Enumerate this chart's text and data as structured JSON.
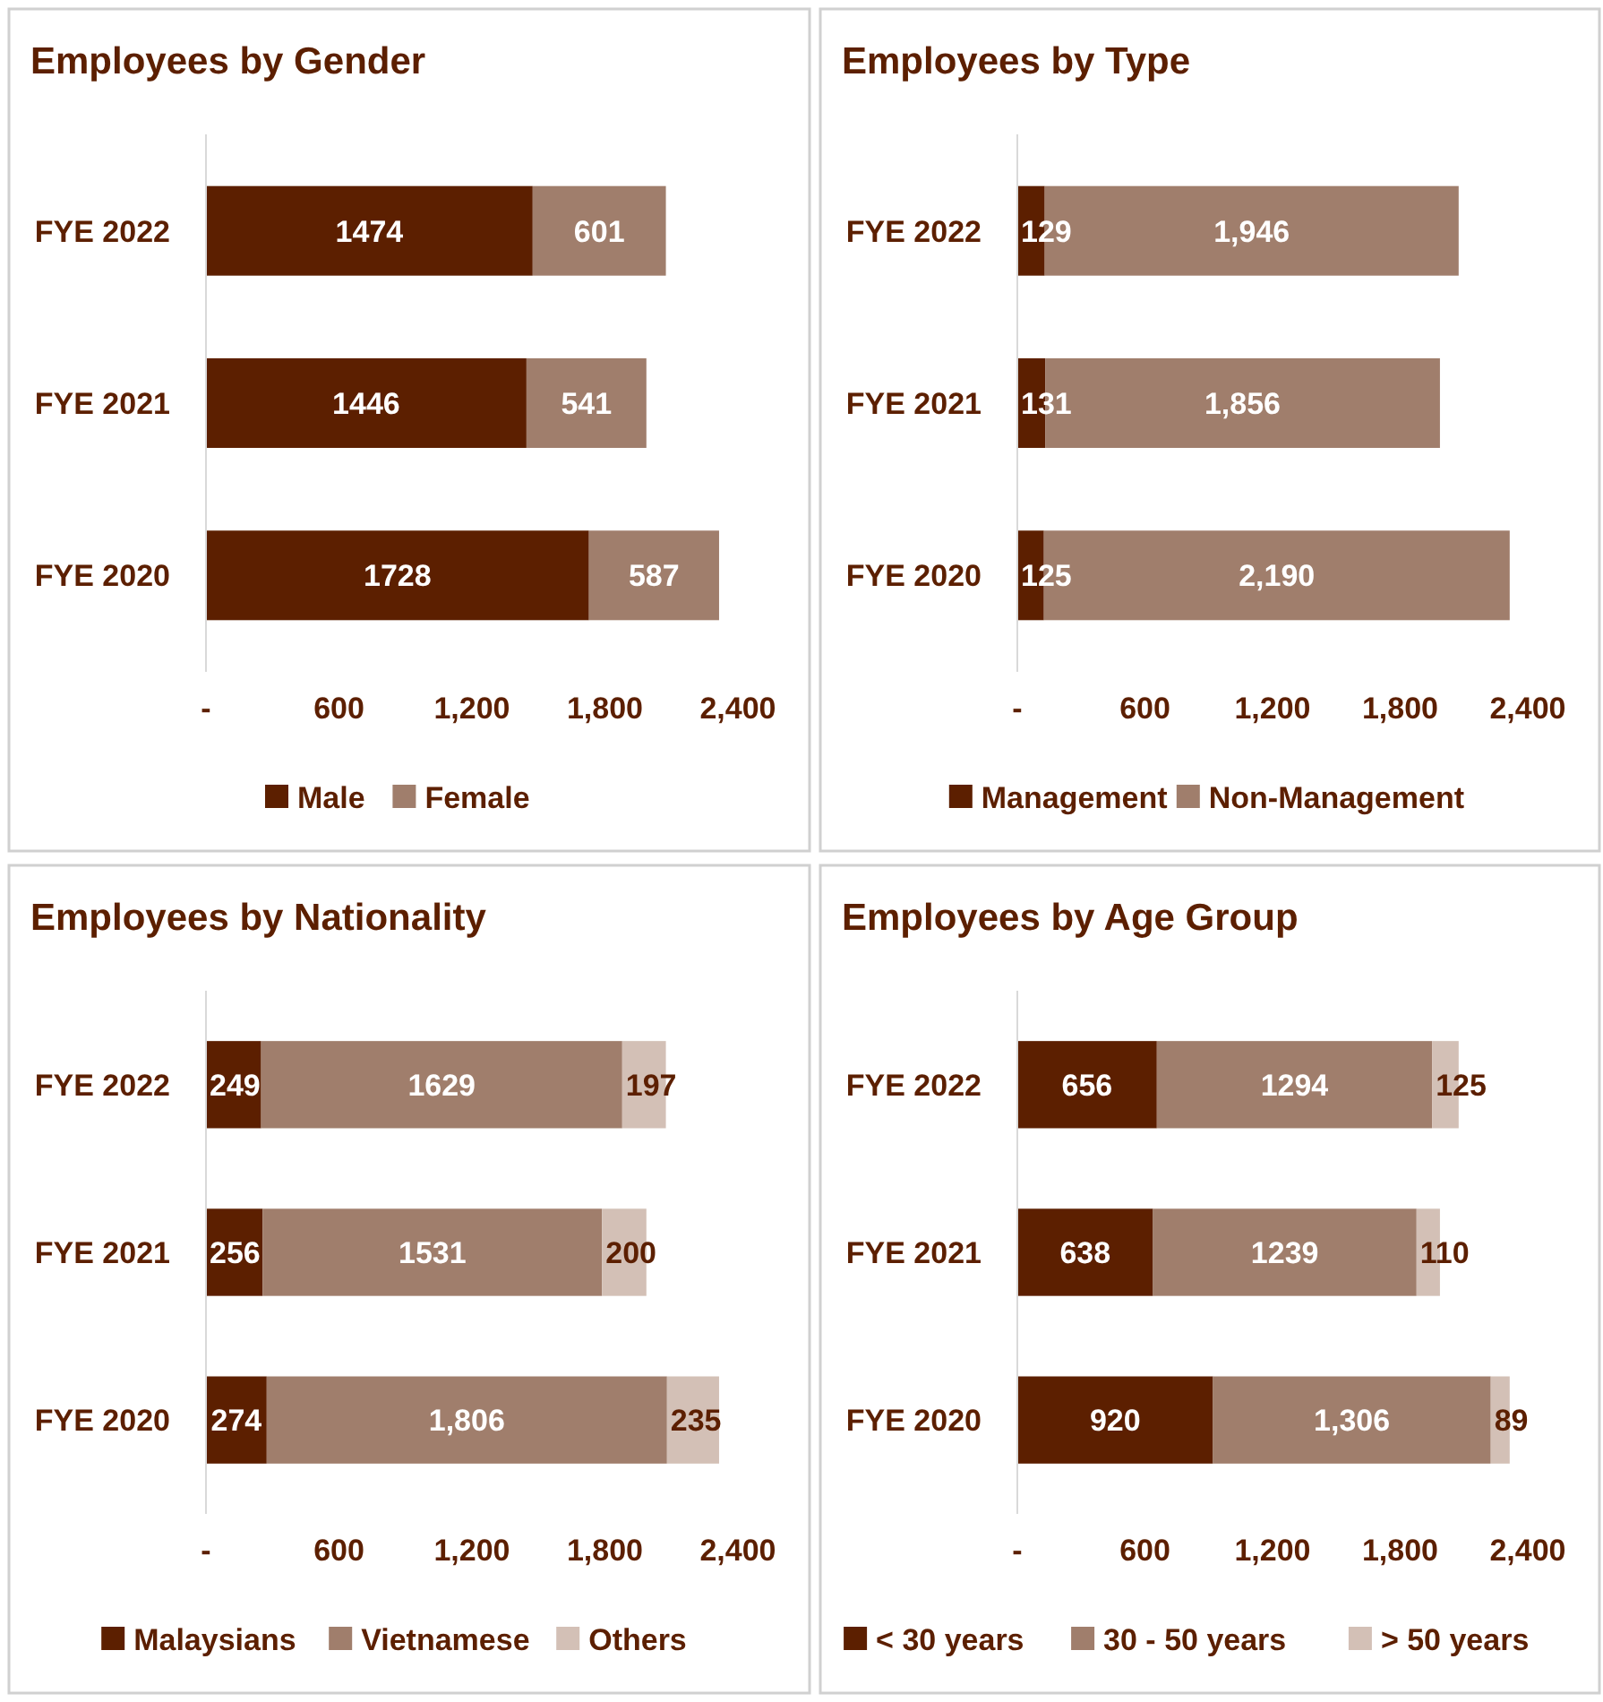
{
  "chart_data": [
    {
      "type": "bar",
      "orientation": "horizontal",
      "stacked": true,
      "title": "Employees by Gender",
      "categories": [
        "FYE 2022",
        "FYE 2021",
        "FYE 2020"
      ],
      "xlim": [
        0,
        2400
      ],
      "xticks": [
        {
          "value": 0,
          "label": "-"
        },
        {
          "value": 600,
          "label": "600"
        },
        {
          "value": 1200,
          "label": "1,200"
        },
        {
          "value": 1800,
          "label": "1,800"
        },
        {
          "value": 2400,
          "label": "2,400"
        }
      ],
      "legend": "bottom",
      "grid": false,
      "series": [
        {
          "name": "Male",
          "color": "#5c1f00",
          "values": [
            1474,
            1446,
            1728
          ],
          "value_labels": [
            "1474",
            "1446",
            "1728"
          ]
        },
        {
          "name": "Female",
          "color": "#a07e6c",
          "values": [
            601,
            541,
            587
          ],
          "value_labels": [
            "601",
            "541",
            "587"
          ]
        }
      ]
    },
    {
      "type": "bar",
      "orientation": "horizontal",
      "stacked": true,
      "title": "Employees by Type",
      "categories": [
        "FYE 2022",
        "FYE 2021",
        "FYE 2020"
      ],
      "xlim": [
        0,
        2400
      ],
      "xticks": [
        {
          "value": 0,
          "label": "-"
        },
        {
          "value": 600,
          "label": "600"
        },
        {
          "value": 1200,
          "label": "1,200"
        },
        {
          "value": 1800,
          "label": "1,800"
        },
        {
          "value": 2400,
          "label": "2,400"
        }
      ],
      "legend": "bottom",
      "grid": false,
      "series": [
        {
          "name": "Management",
          "color": "#5c1f00",
          "values": [
            129,
            131,
            125
          ],
          "value_labels": [
            "129",
            "131",
            "125"
          ]
        },
        {
          "name": "Non-Management",
          "color": "#a07e6c",
          "values": [
            1946,
            1856,
            2190
          ],
          "value_labels": [
            "1,946",
            "1,856",
            "2,190"
          ]
        }
      ]
    },
    {
      "type": "bar",
      "orientation": "horizontal",
      "stacked": true,
      "title": "Employees by Nationality",
      "categories": [
        "FYE 2022",
        "FYE 2021",
        "FYE 2020"
      ],
      "xlim": [
        0,
        2400
      ],
      "xticks": [
        {
          "value": 0,
          "label": "-"
        },
        {
          "value": 600,
          "label": "600"
        },
        {
          "value": 1200,
          "label": "1,200"
        },
        {
          "value": 1800,
          "label": "1,800"
        },
        {
          "value": 2400,
          "label": "2,400"
        }
      ],
      "legend": "bottom",
      "grid": false,
      "series": [
        {
          "name": "Malaysians",
          "color": "#5c1f00",
          "values": [
            249,
            256,
            274
          ],
          "value_labels": [
            "249",
            "256",
            "274"
          ]
        },
        {
          "name": "Vietnamese",
          "color": "#a07e6c",
          "values": [
            1629,
            1531,
            1806
          ],
          "value_labels": [
            "1629",
            "1531",
            "1,806"
          ]
        },
        {
          "name": "Others",
          "color": "#d3c0b6",
          "values": [
            197,
            200,
            235
          ],
          "value_labels": [
            "197",
            "200",
            "235"
          ]
        }
      ]
    },
    {
      "type": "bar",
      "orientation": "horizontal",
      "stacked": true,
      "title": "Employees by Age Group",
      "categories": [
        "FYE 2022",
        "FYE 2021",
        "FYE 2020"
      ],
      "xlim": [
        0,
        2400
      ],
      "xticks": [
        {
          "value": 0,
          "label": "-"
        },
        {
          "value": 600,
          "label": "600"
        },
        {
          "value": 1200,
          "label": "1,200"
        },
        {
          "value": 1800,
          "label": "1,800"
        },
        {
          "value": 2400,
          "label": "2,400"
        }
      ],
      "legend": "bottom",
      "grid": false,
      "series": [
        {
          "name": "< 30 years",
          "color": "#5c1f00",
          "values": [
            656,
            638,
            920
          ],
          "value_labels": [
            "656",
            "638",
            "920"
          ]
        },
        {
          "name": "30 - 50 years",
          "color": "#a07e6c",
          "values": [
            1294,
            1239,
            1306
          ],
          "value_labels": [
            "1294",
            "1239",
            "1,306"
          ]
        },
        {
          "name": "> 50 years",
          "color": "#d3c0b6",
          "values": [
            125,
            110,
            89
          ],
          "value_labels": [
            "125",
            "110",
            "89"
          ]
        }
      ]
    }
  ]
}
